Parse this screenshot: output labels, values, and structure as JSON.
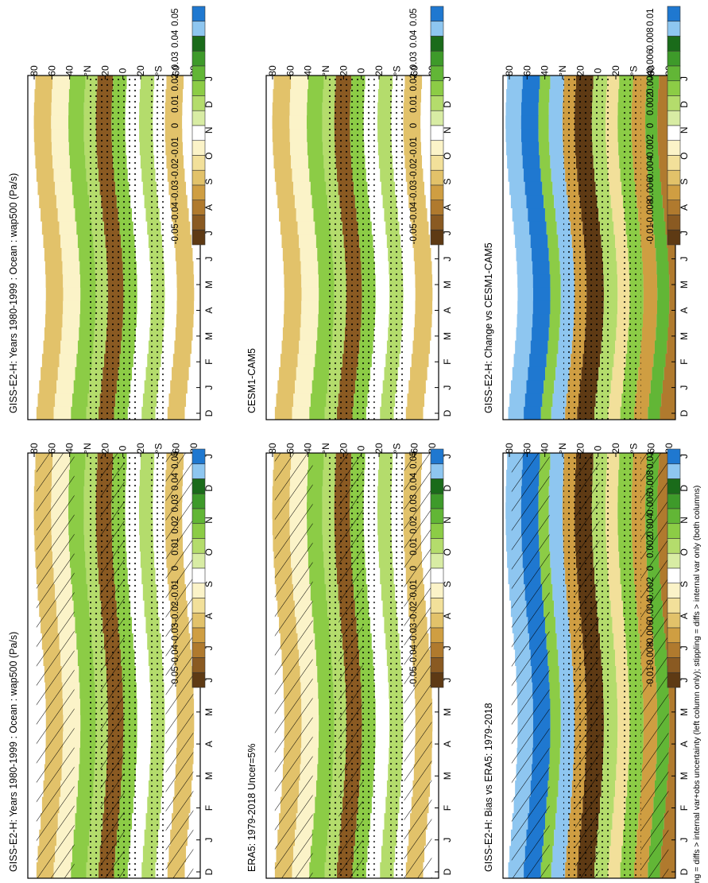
{
  "footnote": "hatching = diffs > internal var+obs uncertainty (left column only); stippling = diffs > internal var only (both columns)",
  "month_labels": [
    "D",
    "J",
    "F",
    "M",
    "A",
    "M",
    "J",
    "J",
    "A",
    "S",
    "O",
    "N",
    "D",
    "J"
  ],
  "lat_labels": [
    "80",
    "60",
    "40",
    "°N",
    "20",
    "0",
    "20",
    "°S",
    "60",
    "80"
  ],
  "chart_data": [
    {
      "type": "heatmap",
      "title": "GISS-E2-H: Years 1980-1999 : Ocean : wap500 (Pa/s)",
      "x": "month",
      "y": "latitude",
      "colorbar": [
        "0.05",
        "0.04",
        "0.03",
        "0.02",
        "0.01",
        "0",
        "-0.01",
        "-0.02",
        "-0.03",
        "-0.04",
        "-0.05"
      ],
      "hatched": true,
      "stippled": true
    },
    {
      "type": "heatmap",
      "title": "GISS-E2-H: Years 1980-1999 : Ocean : wap500 (Pa/s)",
      "x": "month",
      "y": "latitude",
      "colorbar": [
        "0.05",
        "0.04",
        "0.03",
        "0.02",
        "0.01",
        "0",
        "-0.01",
        "-0.02",
        "-0.03",
        "-0.04",
        "-0.05"
      ],
      "hatched": false,
      "stippled": true
    },
    {
      "type": "heatmap",
      "title": "ERA5: 1979-2018 Uncer=5%",
      "x": "month",
      "y": "latitude",
      "colorbar": [
        "0.05",
        "0.04",
        "0.03",
        "0.02",
        "0.01",
        "0",
        "-0.01",
        "-0.02",
        "-0.03",
        "-0.04",
        "-0.05"
      ],
      "hatched": true,
      "stippled": true
    },
    {
      "type": "heatmap",
      "title": "CESM1-CAM5",
      "x": "month",
      "y": "latitude",
      "colorbar": [
        "0.05",
        "0.04",
        "0.03",
        "0.02",
        "0.01",
        "0",
        "-0.01",
        "-0.02",
        "-0.03",
        "-0.04",
        "-0.05"
      ],
      "hatched": false,
      "stippled": true
    },
    {
      "type": "heatmap",
      "title": "GISS-E2-H: Bias vs ERA5: 1979-2018",
      "x": "month",
      "y": "latitude",
      "colorbar": [
        "0.01",
        "0.008",
        "0.006",
        "0.004",
        "0.002",
        "0",
        "-0.002",
        "-0.004",
        "-0.006",
        "-0.008",
        "-0.01"
      ],
      "hatched": true,
      "stippled": true
    },
    {
      "type": "heatmap",
      "title": "GISS-E2-H: Change vs CESM1-CAM5",
      "x": "month",
      "y": "latitude",
      "colorbar": [
        "0.01",
        "0.008",
        "0.006",
        "0.004",
        "0.002",
        "0",
        "-0.002",
        "-0.004",
        "-0.006",
        "-0.008",
        "-0.01"
      ],
      "hatched": false,
      "stippled": true
    }
  ],
  "colors": {
    "scale": [
      "#1f78d0",
      "#8ec6f0",
      "#1a6b1a",
      "#3e9a2a",
      "#62b636",
      "#8ccc46",
      "#b4dc6c",
      "#d8eca4",
      "#ffffff",
      "#fbf3c8",
      "#f2e09a",
      "#e2c26a",
      "#cf9e42",
      "#b07a2e",
      "#8a5a22",
      "#5e3a14"
    ]
  }
}
